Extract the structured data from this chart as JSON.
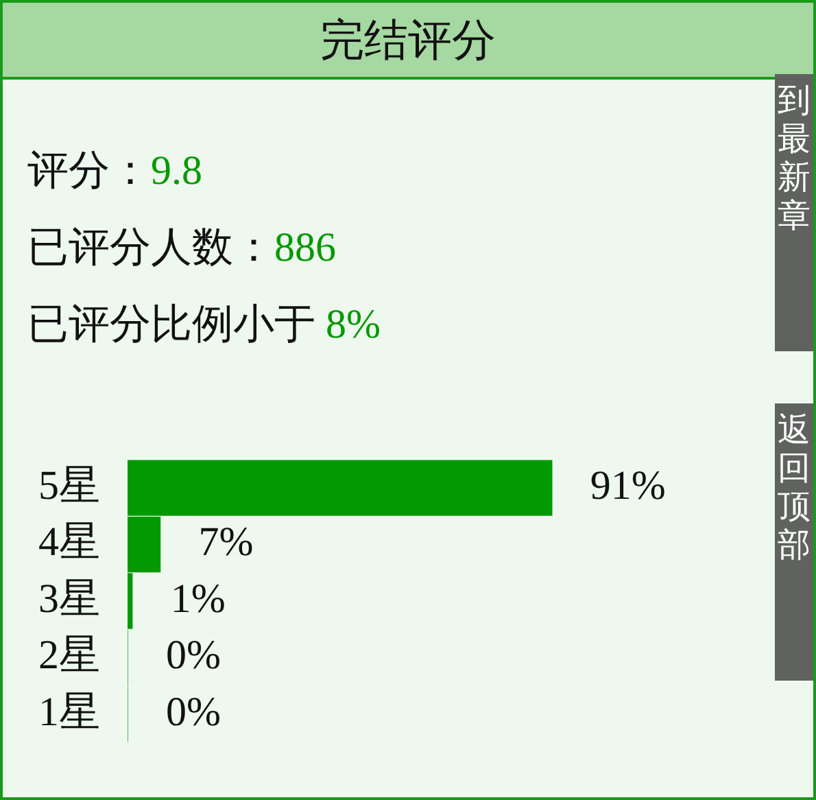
{
  "chart_data": {
    "type": "bar",
    "orientation": "horizontal",
    "title": "完结评分",
    "annotations": [
      "评分：",
      "9.8",
      "已评分人数：",
      "886",
      "已评分比例小于 ",
      "8%",
      "到最新章",
      "返回顶部"
    ],
    "categories": [
      "5星",
      "4星",
      "3星",
      "2星",
      "1星"
    ],
    "values": [
      91,
      7,
      1,
      0,
      0
    ],
    "value_labels": [
      "91%",
      "7%",
      "1%",
      "0%",
      "0%"
    ],
    "color": "#009900",
    "tick_labels": "y",
    "legend": false
  }
}
